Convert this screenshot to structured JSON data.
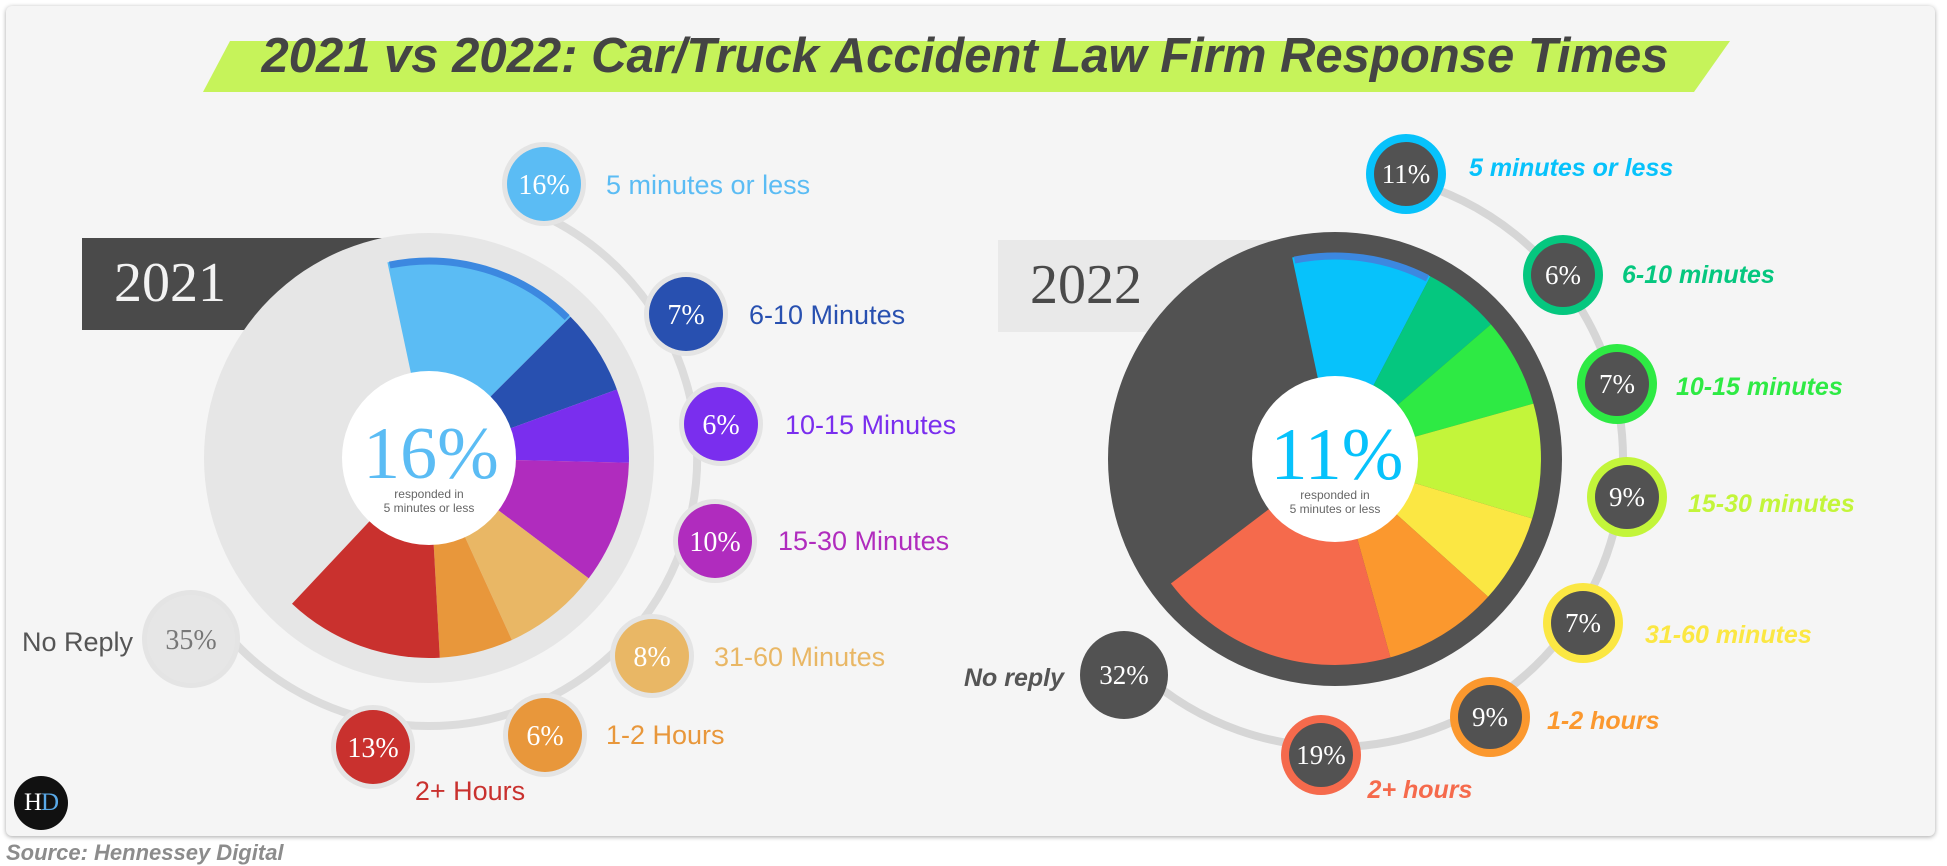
{
  "title": "2021 vs 2022: Car/Truck Accident Law Firm Response Times",
  "source": "Source: Hennessey Digital",
  "logo": {
    "letter1": "H",
    "letter2": "D"
  },
  "colors": {
    "title_band": "#c6f35a",
    "title_text": "#444444"
  },
  "chart_data": [
    {
      "type": "pie",
      "year_label": "2021",
      "center_value": "16%",
      "center_caption": [
        "responded in",
        "5 minutes or less"
      ],
      "categories": [
        "5 minutes or less",
        "6-10 Minutes",
        "10-15 Minutes",
        "15-30 Minutes",
        "31-60 Minutes",
        "1-2 Hours",
        "2+ Hours",
        "No Reply"
      ],
      "values": [
        16,
        7,
        6,
        10,
        8,
        6,
        13,
        35
      ],
      "value_labels": [
        "16%",
        "7%",
        "6%",
        "10%",
        "8%",
        "6%",
        "13%",
        "35%"
      ],
      "colors": [
        "#5bbcf4",
        "#2850b0",
        "#7a2eee",
        "#b02cbe",
        "#e9b765",
        "#e8973b",
        "#c9312e",
        "#e6e6e6"
      ]
    },
    {
      "type": "pie",
      "year_label": "2022",
      "center_value": "11%",
      "center_caption": [
        "responded in",
        "5 minutes or less"
      ],
      "categories": [
        "5 minutes or less",
        "6-10 minutes",
        "10-15 minutes",
        "15-30 minutes",
        "31-60 minutes",
        "1-2 hours",
        "2+ hours",
        "No reply"
      ],
      "values": [
        11,
        6,
        7,
        9,
        7,
        9,
        19,
        32
      ],
      "value_labels": [
        "11%",
        "6%",
        "7%",
        "9%",
        "7%",
        "9%",
        "19%",
        "32%"
      ],
      "colors": [
        "#07c2fb",
        "#05c77f",
        "#2eea44",
        "#c3f53a",
        "#fbe743",
        "#fb982e",
        "#f56a4c",
        "#525252"
      ]
    }
  ]
}
